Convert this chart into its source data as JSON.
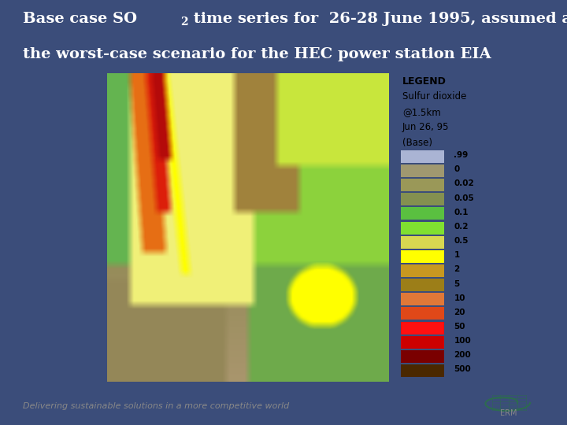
{
  "bg_color": "#3b4d7a",
  "title_color": "#ffffff",
  "title_fontsize": 14,
  "title_line2": "the worst-case scenario for the HEC power station EIA",
  "legend_title": "LEGEND",
  "legend_subtitle1": "Sulfur dioxide",
  "legend_subtitle2": "@1.5km",
  "legend_subtitle3": "Jun 26, 95",
  "legend_subtitle4": "(Base)",
  "legend_labels": [
    ".99",
    "0",
    "0.02",
    "0.05",
    "0.1",
    "0.2",
    "0.5",
    "1",
    "2",
    "5",
    "10",
    "20",
    "50",
    "100",
    "200",
    "500"
  ],
  "legend_colors": [
    "#aab4d4",
    "#a09870",
    "#9a9858",
    "#849050",
    "#5ac040",
    "#80e030",
    "#d8d850",
    "#ffff00",
    "#c89820",
    "#9c7e18",
    "#e07838",
    "#e04818",
    "#ff1010",
    "#cc0000",
    "#7a0000",
    "#4a2800"
  ],
  "footer_text": "Delivering sustainable solutions in a more competitive world",
  "footer_fontsize": 8,
  "panel_bg": "#ffffff",
  "map_colors": {
    "bg_green": [
      100,
      180,
      80
    ],
    "light_green": [
      140,
      210,
      60
    ],
    "bright_green": [
      80,
      200,
      50
    ],
    "yellow_green": [
      200,
      230,
      60
    ],
    "pale_yellow": [
      240,
      240,
      120
    ],
    "yellow": [
      255,
      255,
      0
    ],
    "bright_yellow": [
      255,
      255,
      50
    ],
    "orange": [
      230,
      110,
      20
    ],
    "dark_orange": [
      200,
      80,
      20
    ],
    "red": [
      220,
      30,
      10
    ],
    "dark_red": [
      180,
      10,
      10
    ],
    "brown_green": [
      140,
      140,
      80
    ],
    "olive": [
      160,
      130,
      60
    ],
    "tan": [
      170,
      160,
      110
    ],
    "dark_tan": [
      150,
      140,
      95
    ],
    "blue_dark": [
      30,
      30,
      80
    ]
  }
}
